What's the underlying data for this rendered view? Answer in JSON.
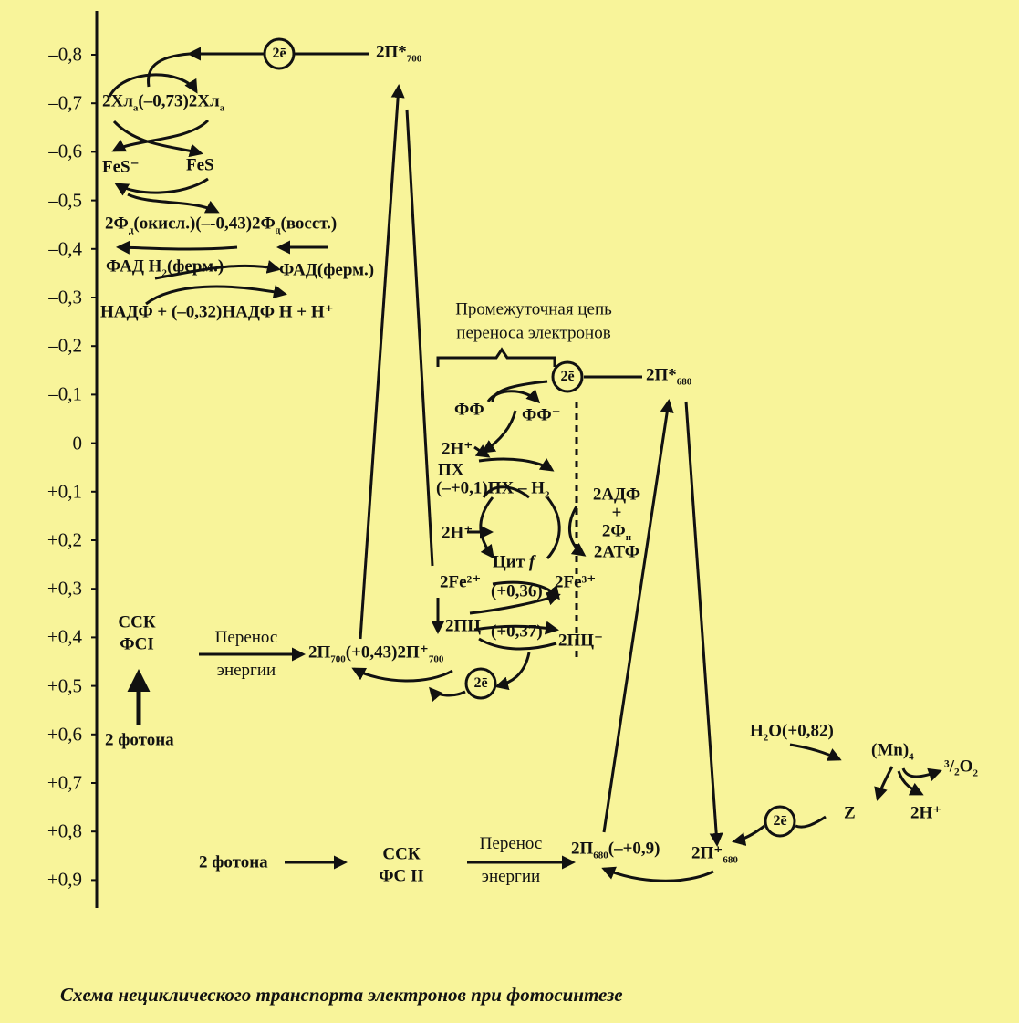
{
  "axis": {
    "ticks": [
      "–0,8",
      "–0,7",
      "–0,6",
      "–0,5",
      "–0,4",
      "–0,3",
      "–0,2",
      "–0,1",
      "0",
      "+0,1",
      "+0,2",
      "+0,3",
      "+0,4",
      "+0,5",
      "+0,6",
      "+0,7",
      "+0,8",
      "+0,9"
    ]
  },
  "ps1": {
    "p700_excited": "2П*",
    "p700_excited_sub": "700",
    "electrons_label": "2ē",
    "chl_ox": "2Хл",
    "chl_sub": "а",
    "chl_potential": "(–0,73)",
    "chl_red": "2Хл",
    "fes_red": "FeS⁻",
    "fes_ox": "FeS",
    "fd_ox": "2Ф",
    "fd_sub": "д",
    "fd_ox_tail": "(окисл.)(–-0,43)",
    "fd_red": "2Ф",
    "fd_red_tail": "(восст.)",
    "fad_red_a": "ФАД Н",
    "fad_red_sub": "2",
    "fad_red_b": "(ферм.)",
    "fad_ox": "ФАД(ферм.)",
    "nadp_ox": "НАДФ + (–0,32)",
    "nadp_red": "НАДФ Н + Н⁺",
    "rc_a": "ССК",
    "rc_b": "ФСI",
    "photons": "2 фотона",
    "transfer_a": "Перенос",
    "transfer_b": "энергии",
    "p700": "2П",
    "p700_sub": "700",
    "p700_potential": "(+0,43)",
    "p700_ox": "2П⁺",
    "p700_ox_sub": "700"
  },
  "chain": {
    "title_a": "Промежуточная цепь",
    "title_b": "переноса электронов",
    "pheo": "ФФ",
    "pheo_red": "ФФ⁻",
    "h_in1": "2Н⁺",
    "pq": "ПХ",
    "pq_red": "(–+0,1)ПХ – Н",
    "pq_red_sub": "2",
    "adp": "2АДФ",
    "plus": "+",
    "pi": "2Ф",
    "pi_sub": "н",
    "atp": "2АТФ",
    "h_out": "2Н⁺",
    "cyt": "Цит",
    "cyt_f": "f",
    "fe2": "2Fe²⁺",
    "cyt_potential": "(+0,36)",
    "fe3": "2Fe³⁺",
    "pc": "2ПЦ",
    "pc_potential": "(+0,37)",
    "pc_ox": "2ПЦ⁻",
    "electrons_label": "2ē"
  },
  "ps2": {
    "p680_excited": "2П*",
    "p680_excited_sub": "680",
    "electrons_label": "2ē",
    "photons": "2 фотона",
    "rc_a": "ССК",
    "rc_b": "ФС II",
    "transfer_a": "Перенос",
    "transfer_b": "энергии",
    "p680": "2П",
    "p680_sub": "680",
    "p680_potential": "(–+0,9)",
    "p680_ox": "2П⁺",
    "p680_ox_sub": "680",
    "water": "Н",
    "water_sub": "2",
    "water_tail": "О(+0,82)",
    "mn": "(Mn)",
    "mn_sub": "4",
    "oxygen": "³/₂О",
    "oxygen_sub": "2",
    "protons": "2Н⁺",
    "z": "Z"
  },
  "caption": "Схема нециклического транспорта электронов при фотосинтезе"
}
